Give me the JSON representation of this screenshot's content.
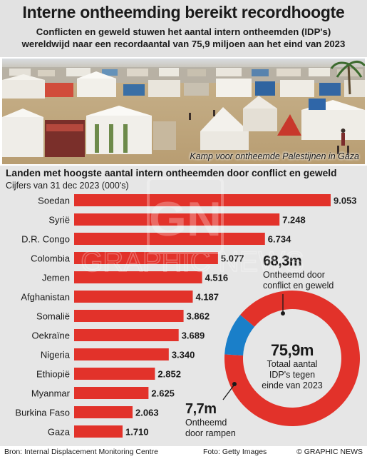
{
  "header": {
    "title": "Interne ontheemding bereikt recordhoogte",
    "subtitle_line1": "Conflicten en geweld stuwen het aantal intern ontheemden (IDP's)",
    "subtitle_line2": "wereldwijd naar een recordaantal van 75,9 miljoen aan het eind van 2023"
  },
  "photo": {
    "caption": "Kamp voor ontheemde Palestijnen in Gaza"
  },
  "chart_data": [
    {
      "type": "bar",
      "title": "Landen met hoogste aantal intern ontheemden door conflict en geweld",
      "subtitle": "Cijfers van 31 dec 2023 (000's)",
      "categories": [
        "Soedan",
        "Syrië",
        "D.R. Congo",
        "Colombia",
        "Jemen",
        "Afghanistan",
        "Somalië",
        "Oekraïne",
        "Nigeria",
        "Ethiopië",
        "Myanmar",
        "Burkina Faso",
        "Gaza"
      ],
      "values": [
        9053,
        7248,
        6734,
        5077,
        4516,
        4187,
        3862,
        3689,
        3340,
        2852,
        2625,
        2063,
        1710
      ],
      "value_labels": [
        "9.053",
        "7.248",
        "6.734",
        "5.077",
        "4.516",
        "4.187",
        "3.862",
        "3.689",
        "3.340",
        "2.852",
        "2.625",
        "2.063",
        "1.710"
      ],
      "xlim": [
        0,
        9053
      ],
      "grid": false,
      "color": "#e2322a"
    },
    {
      "type": "pie",
      "variant": "donut",
      "categories": [
        "Ontheemd door conflict en geweld",
        "Ontheemd door rampen"
      ],
      "values": [
        68.3,
        7.7
      ],
      "colors": [
        "#e2322a",
        "#1a7fc9"
      ]
    }
  ],
  "donut": {
    "total_value": "75,9m",
    "total_line1": "Totaal aantal",
    "total_line2": "IDP's tegen",
    "total_line3": "einde van 2023",
    "conflict_value": "68,3m",
    "conflict_line1": "Ontheemd door",
    "conflict_line2": "conflict en geweld",
    "disaster_value": "7,7m",
    "disaster_line1": "Ontheemd",
    "disaster_line2": "door rampen"
  },
  "watermark": {
    "logo": "GN",
    "text": "GRAPHIC NEWS"
  },
  "footer": {
    "source": "Bron: Internal Displacement Monitoring Centre",
    "photo_credit": "Foto: Getty Images",
    "copyright": "© GRAPHIC NEWS"
  }
}
